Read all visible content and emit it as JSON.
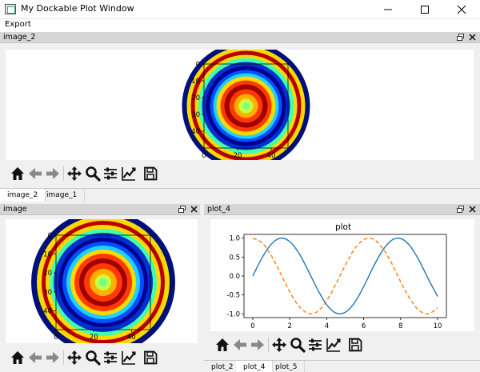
{
  "window": {
    "title": "My Dockable Plot Window",
    "menu": [
      "Export"
    ],
    "controls": [
      "minimize",
      "maximize",
      "close"
    ]
  },
  "top_dock": {
    "title": "image_2",
    "tabs": [
      {
        "label": "image_2",
        "active": true
      },
      {
        "label": "image_1",
        "active": false
      }
    ]
  },
  "left_dock": {
    "title": "image"
  },
  "right_dock": {
    "title": "plot_4",
    "tabs": [
      {
        "label": "plot_2",
        "active": false
      },
      {
        "label": "plot_4",
        "active": true
      },
      {
        "label": "plot_5",
        "active": false
      }
    ]
  },
  "toolbar_icons": [
    "home-icon",
    "back-arrow-icon",
    "forward-arrow-icon",
    "pan-icon",
    "zoom-icon",
    "configure-subplots-icon",
    "edit-axis-icon",
    "save-icon"
  ],
  "colors": {
    "series1": "#1f77b4",
    "series2": "#ff7f0e"
  },
  "chart_data": [
    {
      "type": "heatmap",
      "title": "image",
      "colormap": "jet",
      "pattern": "concentric rings",
      "xticks": [
        "0",
        "20",
        "40"
      ],
      "yticks": [
        "0",
        "10",
        "20",
        "30",
        "40"
      ],
      "xlim": [
        0,
        50
      ],
      "ylim": [
        50,
        0
      ]
    },
    {
      "type": "heatmap",
      "title": "image",
      "colormap": "jet",
      "pattern": "concentric rings",
      "xticks": [
        "0",
        "20",
        "40"
      ],
      "yticks": [
        "0",
        "10",
        "20",
        "30",
        "40"
      ],
      "xlim": [
        0,
        50
      ],
      "ylim": [
        50,
        0
      ]
    },
    {
      "type": "line",
      "title": "plot",
      "xlim": [
        0,
        10
      ],
      "ylim": [
        -1.1,
        1.1
      ],
      "xticks": [
        "0",
        "2",
        "4",
        "6",
        "8",
        "10"
      ],
      "yticks": [
        "1.0",
        "0.5",
        "0.0",
        "-0.5",
        "-1.0"
      ],
      "series": [
        {
          "style": "solid",
          "x": [
            0,
            0.5,
            1,
            1.5,
            2,
            2.5,
            3,
            3.5,
            4,
            4.5,
            5,
            5.5,
            6,
            6.5,
            7,
            7.5,
            8,
            8.5,
            9,
            9.5,
            10
          ],
          "y": [
            0,
            0.48,
            0.84,
            1.0,
            0.91,
            0.6,
            0.14,
            -0.35,
            -0.76,
            -0.98,
            -0.96,
            -0.71,
            -0.28,
            0.22,
            0.66,
            0.94,
            0.99,
            0.8,
            0.41,
            -0.08,
            -0.54
          ]
        },
        {
          "style": "dashed",
          "x": [
            0,
            0.5,
            1,
            1.5,
            2,
            2.5,
            3,
            3.5,
            4,
            4.5,
            5,
            5.5,
            6,
            6.5,
            7,
            7.5,
            8,
            8.5,
            9,
            9.5,
            10
          ],
          "y": [
            1.0,
            0.88,
            0.54,
            0.07,
            -0.42,
            -0.8,
            -0.99,
            -0.94,
            -0.65,
            -0.21,
            0.28,
            0.71,
            0.96,
            0.98,
            0.75,
            0.35,
            -0.15,
            -0.6,
            -0.91,
            -1.0,
            -0.84
          ]
        }
      ]
    }
  ]
}
